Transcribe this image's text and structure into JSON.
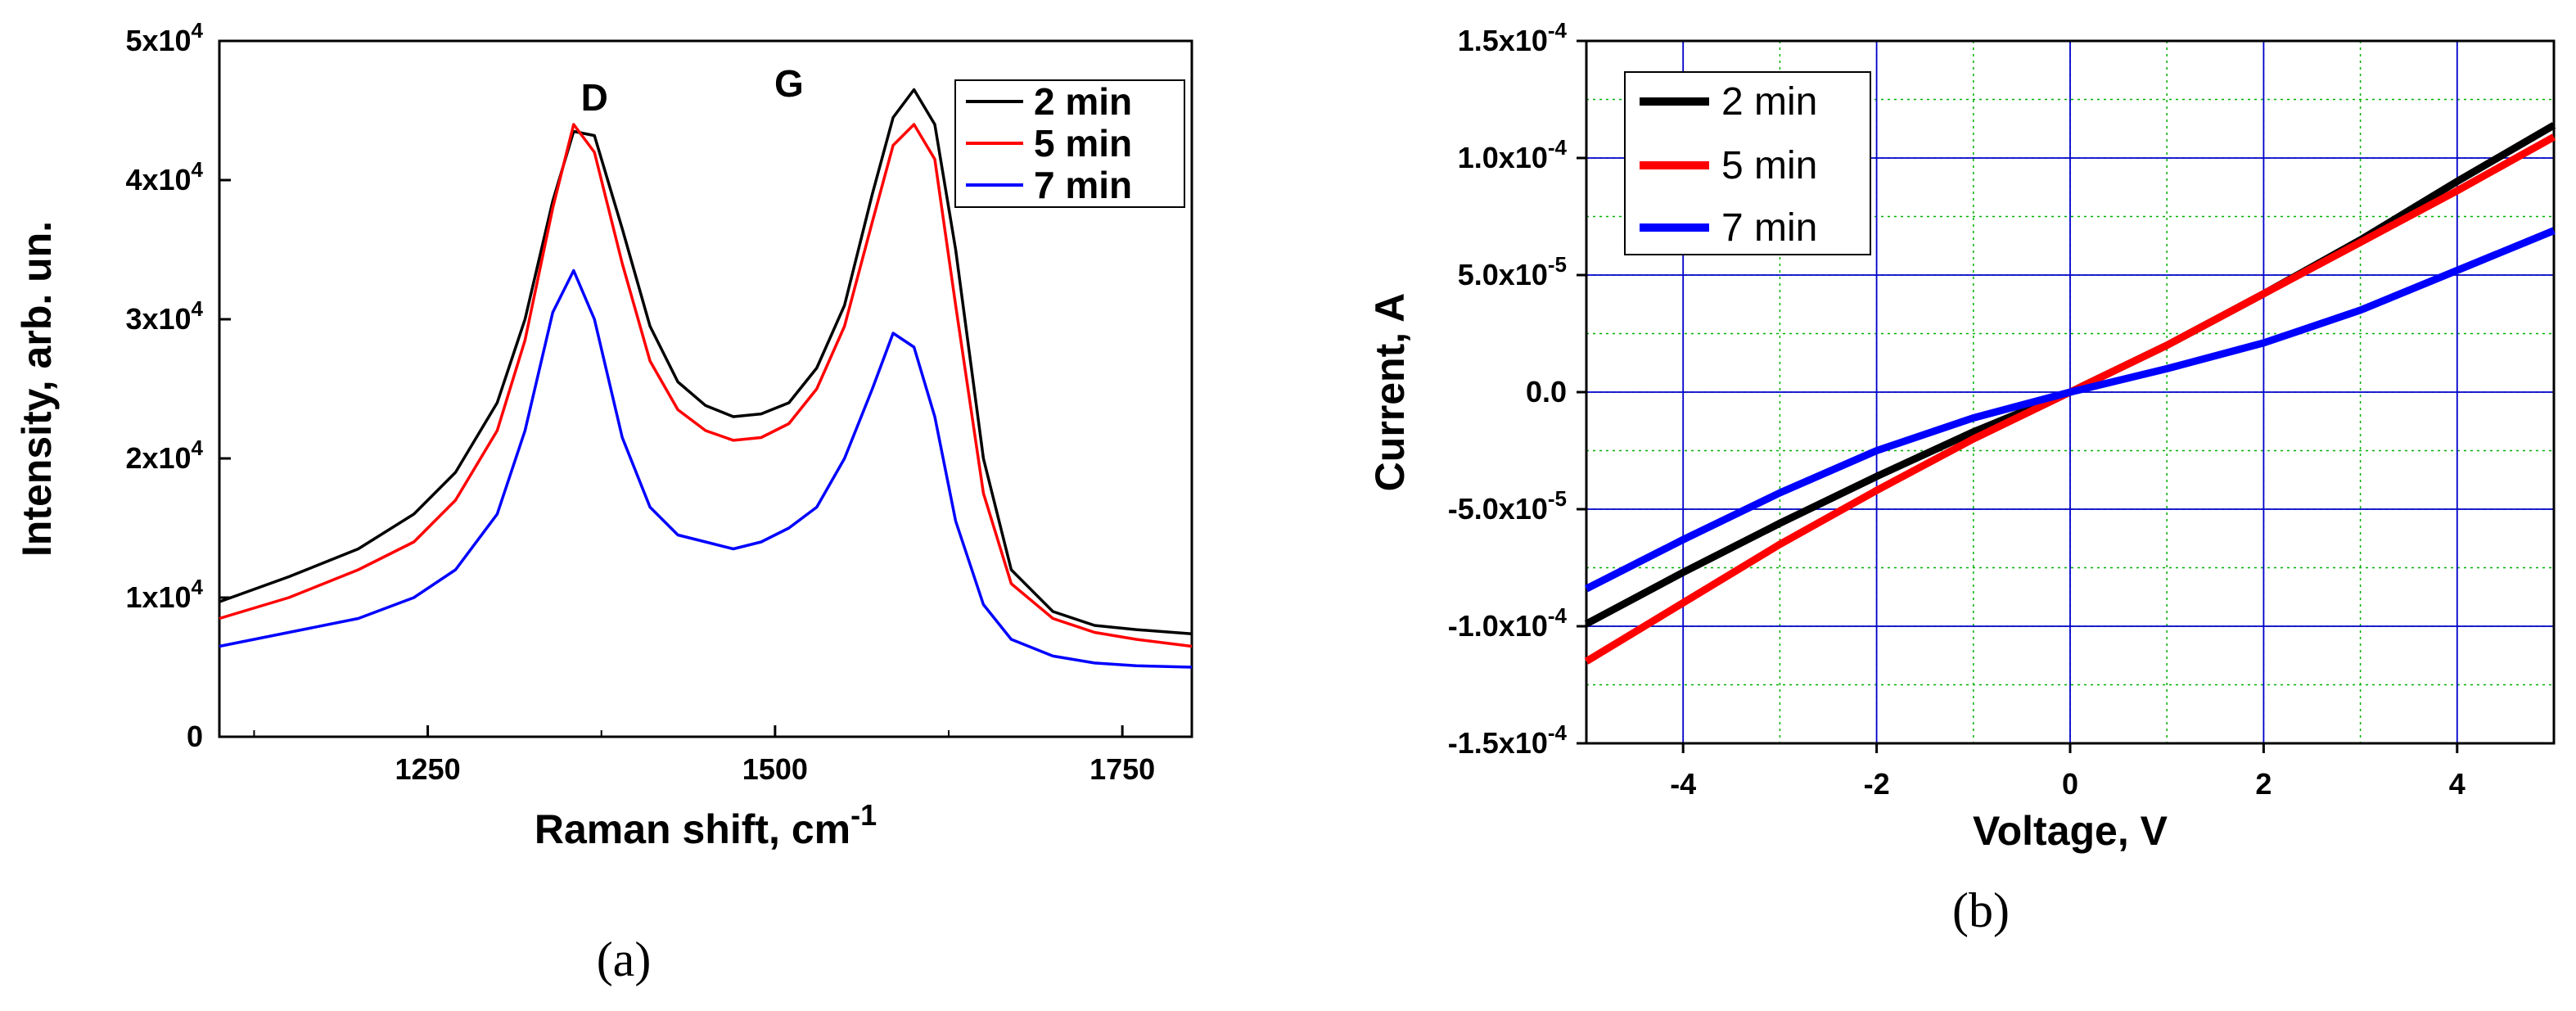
{
  "chart_data": [
    {
      "id": "a",
      "type": "line",
      "panel_label": "(a)",
      "title": "",
      "xlabel": "Raman shift, cm",
      "xlabel_sup": "-1",
      "ylabel": "Intensity, arb. un.",
      "xlim": [
        1100,
        1800
      ],
      "ylim": [
        0,
        50000
      ],
      "x_ticks": [
        1250,
        1500,
        1750
      ],
      "x_tick_labels": [
        "1250",
        "1500",
        "1750"
      ],
      "y_ticks": [
        0,
        10000,
        20000,
        30000,
        40000,
        50000
      ],
      "y_tick_labels": [
        {
          "base": "0",
          "exp": ""
        },
        {
          "base": "1x10",
          "exp": "4"
        },
        {
          "base": "2x10",
          "exp": "4"
        },
        {
          "base": "3x10",
          "exp": "4"
        },
        {
          "base": "4x10",
          "exp": "4"
        },
        {
          "base": "5x10",
          "exp": "4"
        }
      ],
      "grid": false,
      "legend_position": "top-right",
      "annotations": [
        {
          "text": "D",
          "x": 1370,
          "y": 45000
        },
        {
          "text": "G",
          "x": 1510,
          "y": 46000
        }
      ],
      "series": [
        {
          "name": "2 min",
          "color": "#000000",
          "x": [
            1100,
            1150,
            1200,
            1240,
            1270,
            1300,
            1320,
            1340,
            1355,
            1370,
            1390,
            1410,
            1430,
            1450,
            1470,
            1490,
            1510,
            1530,
            1550,
            1570,
            1585,
            1600,
            1615,
            1630,
            1650,
            1670,
            1700,
            1730,
            1760,
            1800
          ],
          "y": [
            9700,
            11500,
            13500,
            16000,
            19000,
            24000,
            30000,
            38500,
            43500,
            43200,
            36500,
            29500,
            25500,
            23800,
            23000,
            23200,
            24000,
            26500,
            31000,
            39000,
            44500,
            46500,
            44000,
            35000,
            20000,
            12000,
            9000,
            8000,
            7700,
            7400
          ]
        },
        {
          "name": "5 min",
          "color": "#ff0000",
          "x": [
            1100,
            1150,
            1200,
            1240,
            1270,
            1300,
            1320,
            1340,
            1355,
            1370,
            1390,
            1410,
            1430,
            1450,
            1470,
            1490,
            1510,
            1530,
            1550,
            1570,
            1585,
            1600,
            1615,
            1630,
            1650,
            1670,
            1700,
            1730,
            1760,
            1800
          ],
          "y": [
            8500,
            10000,
            12000,
            14000,
            17000,
            22000,
            28500,
            38000,
            44000,
            42000,
            34000,
            27000,
            23500,
            22000,
            21300,
            21500,
            22500,
            25000,
            29500,
            37000,
            42500,
            44000,
            41500,
            31000,
            17500,
            11000,
            8500,
            7500,
            7000,
            6500
          ]
        },
        {
          "name": "7 min",
          "color": "#0000ff",
          "x": [
            1100,
            1150,
            1200,
            1240,
            1270,
            1300,
            1320,
            1340,
            1355,
            1370,
            1390,
            1410,
            1430,
            1450,
            1470,
            1490,
            1510,
            1530,
            1550,
            1570,
            1585,
            1600,
            1615,
            1630,
            1650,
            1670,
            1700,
            1730,
            1760,
            1800
          ],
          "y": [
            6500,
            7500,
            8500,
            10000,
            12000,
            16000,
            22000,
            30500,
            33500,
            30000,
            21500,
            16500,
            14500,
            14000,
            13500,
            14000,
            15000,
            16500,
            20000,
            25000,
            29000,
            28000,
            23000,
            15500,
            9500,
            7000,
            5800,
            5300,
            5100,
            5000
          ]
        }
      ]
    },
    {
      "id": "b",
      "type": "line",
      "panel_label": "(b)",
      "title": "",
      "xlabel": "Voltage, V",
      "ylabel": "Current, A",
      "xlim": [
        -5,
        5
      ],
      "ylim": [
        -0.00015,
        0.00015
      ],
      "x_ticks": [
        -4,
        -2,
        0,
        2,
        4
      ],
      "x_tick_labels": [
        "-4",
        "-2",
        "0",
        "2",
        "4"
      ],
      "y_ticks": [
        -0.00015,
        -0.0001,
        -5e-05,
        0,
        5e-05,
        0.0001,
        0.00015
      ],
      "y_tick_labels": [
        {
          "base": "-1.5x10",
          "exp": "-4"
        },
        {
          "base": "-1.0x10",
          "exp": "-4"
        },
        {
          "base": "-5.0x10",
          "exp": "-5"
        },
        {
          "base": "0.0",
          "exp": ""
        },
        {
          "base": "5.0x10",
          "exp": "-5"
        },
        {
          "base": "1.0x10",
          "exp": "-4"
        },
        {
          "base": "1.5x10",
          "exp": "-4"
        }
      ],
      "grid": true,
      "legend_position": "top-left",
      "series": [
        {
          "name": "2 min",
          "color": "#000000",
          "x": [
            -5,
            -4,
            -3,
            -2,
            -1,
            0,
            1,
            2,
            3,
            4,
            5
          ],
          "y": [
            -9.9e-05,
            -7.7e-05,
            -5.6e-05,
            -3.6e-05,
            -1.7e-05,
            0,
            2e-05,
            4.2e-05,
            6.5e-05,
            9e-05,
            0.000114
          ]
        },
        {
          "name": "5 min",
          "color": "#ff0000",
          "x": [
            -5,
            -4,
            -3,
            -2,
            -1,
            0,
            1,
            2,
            3,
            4,
            5
          ],
          "y": [
            -0.000115,
            -9e-05,
            -6.5e-05,
            -4.2e-05,
            -2e-05,
            0,
            2e-05,
            4.2e-05,
            6.4e-05,
            8.6e-05,
            0.000109
          ]
        },
        {
          "name": "7 min",
          "color": "#0000ff",
          "x": [
            -5,
            -4,
            -3,
            -2,
            -1,
            0,
            1,
            2,
            3,
            4,
            5
          ],
          "y": [
            -8.4e-05,
            -6.3e-05,
            -4.3e-05,
            -2.5e-05,
            -1.1e-05,
            0,
            1e-05,
            2.1e-05,
            3.5e-05,
            5.2e-05,
            6.9e-05
          ]
        }
      ]
    }
  ]
}
